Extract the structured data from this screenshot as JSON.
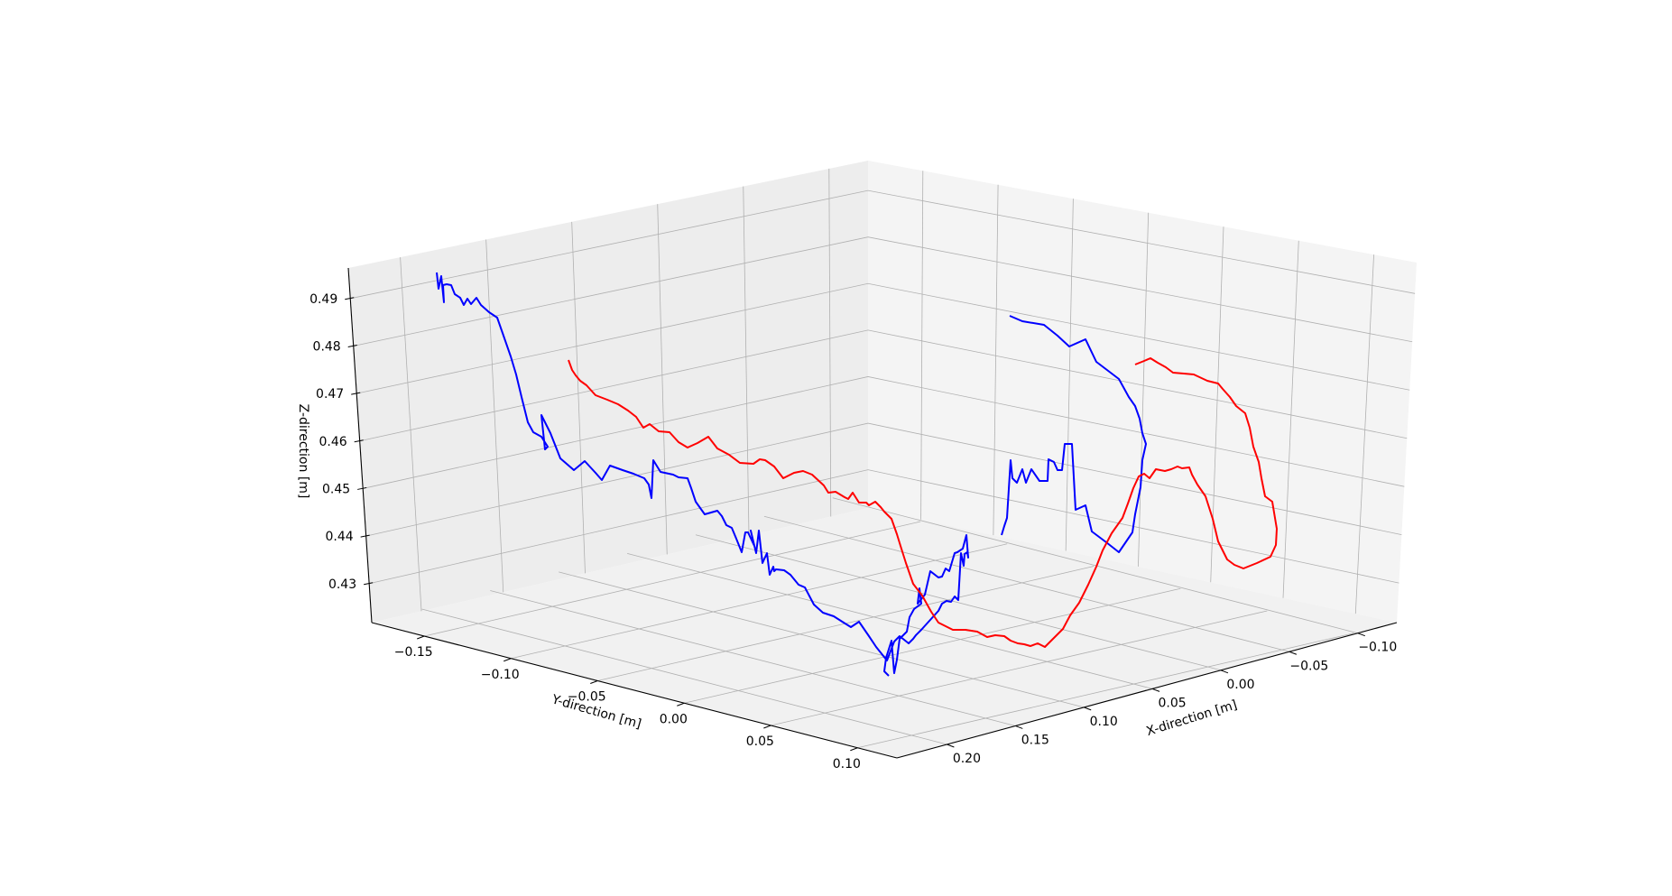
{
  "chart_data": {
    "type": "line",
    "projection": "3d",
    "title": "",
    "xlabel": "X-direction [m]",
    "ylabel": "Y-direction [m]",
    "zlabel": "Z-direction [m]",
    "x_ticks": [
      "0.20",
      "0.15",
      "0.10",
      "0.05",
      "0.00",
      "−0.05",
      "−0.10"
    ],
    "y_ticks": [
      "−0.15",
      "−0.10",
      "−0.05",
      "0.00",
      "0.05",
      "0.10"
    ],
    "z_ticks": [
      "0.43",
      "0.44",
      "0.45",
      "0.46",
      "0.47",
      "0.48",
      "0.49"
    ],
    "grid": true,
    "legend": "none",
    "series": [
      {
        "color": "#0000ff",
        "segments": [
          [
            [
              484,
              302
            ],
            [
              486,
              320
            ],
            [
              489,
              306
            ],
            [
              492,
              335
            ],
            [
              491,
              316
            ],
            [
              495,
              315
            ],
            [
              500,
              316
            ],
            [
              504,
              326
            ],
            [
              510,
              330
            ],
            [
              514,
              338
            ],
            [
              518,
              331
            ],
            [
              522,
              337
            ],
            [
              528,
              330
            ],
            [
              533,
              338
            ],
            [
              542,
              346
            ],
            [
              551,
              352
            ],
            [
              558,
              372
            ],
            [
              566,
              395
            ],
            [
              572,
              415
            ],
            [
              578,
              440
            ],
            [
              585,
              468
            ],
            [
              591,
              479
            ],
            [
              600,
              484
            ],
            [
              607,
              495
            ],
            [
              604,
              498
            ],
            [
              600,
              460
            ],
            [
              610,
              480
            ],
            [
              621,
              508
            ],
            [
              636,
              521
            ],
            [
              648,
              511
            ],
            [
              660,
              524
            ],
            [
              667,
              532
            ],
            [
              676,
              516
            ],
            [
              690,
              521
            ],
            [
              702,
              525
            ],
            [
              714,
              530
            ],
            [
              719,
              537
            ],
            [
              722,
              552
            ],
            [
              724,
              510
            ],
            [
              732,
              523
            ],
            [
              746,
              526
            ],
            [
              752,
              529
            ],
            [
              762,
              530
            ],
            [
              766,
              541
            ],
            [
              771,
              556
            ],
            [
              781,
              570
            ],
            [
              795,
              566
            ],
            [
              800,
              572
            ],
            [
              805,
              582
            ],
            [
              811,
              585
            ],
            [
              816,
              597
            ],
            [
              822,
              612
            ],
            [
              826,
              590
            ],
            [
              829,
              590
            ],
            [
              836,
              605
            ],
            [
              832,
              588
            ],
            [
              838,
              613
            ],
            [
              841,
              588
            ],
            [
              845,
              624
            ],
            [
              850,
              613
            ],
            [
              853,
              637
            ],
            [
              857,
              628
            ],
            [
              858,
              633
            ],
            [
              860,
              631
            ],
            [
              869,
              632
            ],
            [
              876,
              637
            ],
            [
              885,
              648
            ],
            [
              892,
              651
            ],
            [
              902,
              670
            ],
            [
              912,
              679
            ],
            [
              924,
              683
            ],
            [
              935,
              690
            ],
            [
              943,
              695
            ],
            [
              952,
              689
            ],
            [
              963,
              705
            ],
            [
              971,
              717
            ],
            [
              983,
              732
            ],
            [
              991,
              711
            ],
            [
              997,
              705
            ],
            [
              1007,
              713
            ],
            [
              1012,
              708
            ],
            [
              1015,
              704
            ],
            [
              1021,
              698
            ],
            [
              1040,
              677
            ],
            [
              1044,
              669
            ],
            [
              1049,
              666
            ],
            [
              1054,
              667
            ],
            [
              1058,
              661
            ],
            [
              1062,
              665
            ],
            [
              1065,
              613
            ],
            [
              1068,
              627
            ],
            [
              1069,
              614
            ],
            [
              1072,
              612
            ],
            [
              1073,
              618
            ],
            [
              1071,
              593
            ],
            [
              1067,
              608
            ],
            [
              1061,
              612
            ],
            [
              1058,
              613
            ],
            [
              1052,
              633
            ],
            [
              1048,
              630
            ],
            [
              1044,
              639
            ],
            [
              1040,
              640
            ],
            [
              1031,
              633
            ],
            [
              1025,
              659
            ],
            [
              1017,
              669
            ],
            [
              1019,
              652
            ],
            [
              1021,
              669
            ],
            [
              1013,
              675
            ],
            [
              1008,
              684
            ],
            [
              1005,
              700
            ],
            [
              997,
              708
            ],
            [
              994,
              731
            ],
            [
              991,
              746
            ],
            [
              988,
              710
            ],
            [
              982,
              729
            ],
            [
              980,
              744
            ],
            [
              985,
              749
            ]
          ]
        ]
      }
    ]
  },
  "chart_series_names_note": "",
  "view": {
    "blue_line": [],
    "red_line": []
  }
}
